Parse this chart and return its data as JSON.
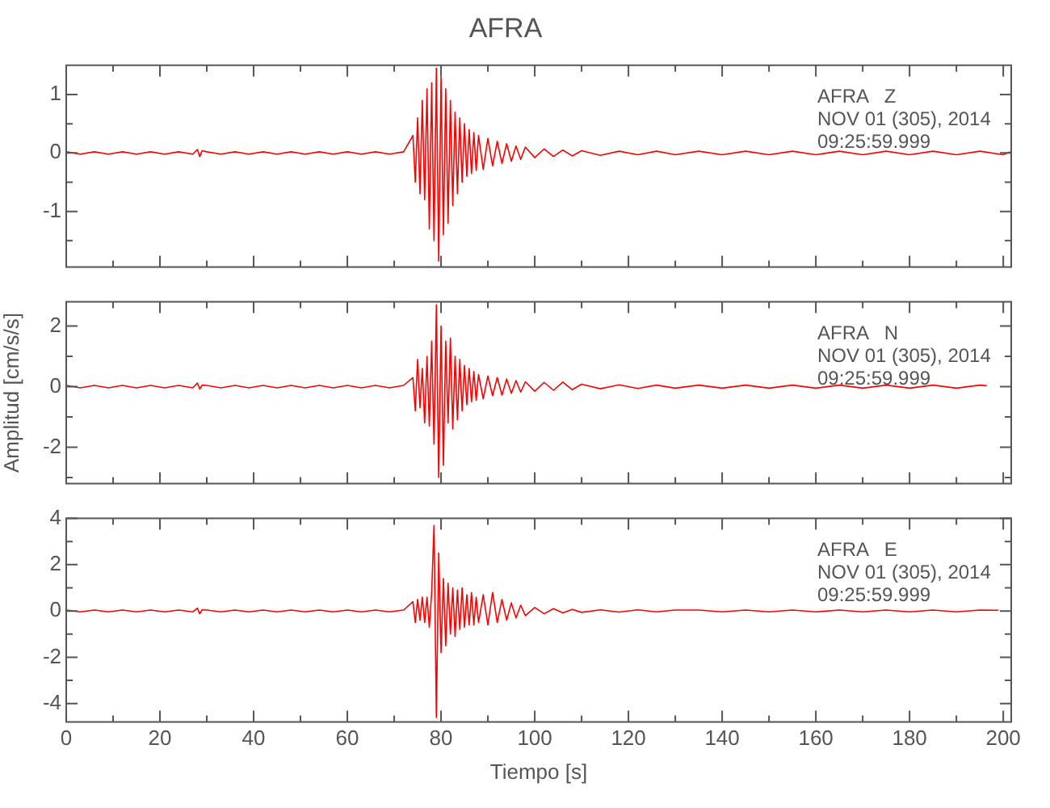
{
  "chart_data": [
    {
      "type": "line",
      "title": "AFRA",
      "annotations": [
        "AFRA   Z",
        "NOV 01 (305), 2014",
        "09:25:59.999"
      ],
      "x": [
        0,
        3,
        6,
        9,
        12,
        15,
        18,
        21,
        24,
        27,
        28,
        28.5,
        29,
        30,
        33,
        36,
        39,
        42,
        45,
        48,
        51,
        54,
        57,
        60,
        63,
        66,
        69,
        72,
        74,
        74.5,
        75,
        75.5,
        76,
        76.5,
        77,
        77.5,
        78,
        78.5,
        79,
        79.5,
        80,
        80.5,
        81,
        81.5,
        82,
        82.5,
        83,
        83.5,
        84,
        84.5,
        85,
        85.5,
        86,
        86.5,
        87,
        87.5,
        88,
        89,
        90,
        91,
        92,
        93,
        94,
        95,
        96,
        97,
        98,
        100,
        102,
        104,
        106,
        108,
        110,
        114,
        118,
        122,
        126,
        130,
        135,
        140,
        145,
        150,
        155,
        160,
        165,
        170,
        175,
        180,
        185,
        190,
        195,
        200,
        201.5
      ],
      "series": [
        {
          "color": "#ff0000",
          "values": [
            0.02,
            -0.02,
            0.02,
            -0.02,
            0.02,
            -0.02,
            0.02,
            -0.02,
            0.02,
            -0.02,
            0.06,
            -0.06,
            0.04,
            0.02,
            -0.02,
            0.02,
            -0.02,
            0.02,
            -0.02,
            0.02,
            -0.02,
            0.02,
            -0.02,
            0.02,
            -0.02,
            0.02,
            -0.02,
            0.02,
            0.3,
            -0.5,
            0.6,
            -0.7,
            0.9,
            -0.8,
            1.1,
            -1.3,
            1.2,
            -1.5,
            1.45,
            -1.85,
            1.3,
            -1.4,
            1.1,
            -1.2,
            0.9,
            -0.9,
            0.7,
            -0.7,
            0.6,
            -0.5,
            0.5,
            -0.4,
            0.4,
            -0.35,
            0.35,
            -0.3,
            0.3,
            -0.28,
            0.25,
            -0.22,
            0.2,
            -0.18,
            0.16,
            -0.14,
            0.12,
            -0.11,
            0.1,
            -0.08,
            0.07,
            -0.06,
            0.05,
            -0.05,
            0.04,
            -0.04,
            0.03,
            -0.03,
            0.03,
            -0.03,
            0.03,
            -0.03,
            0.03,
            -0.03,
            0.03,
            -0.03,
            0.03,
            -0.03,
            0.03,
            -0.03,
            0.03,
            -0.03,
            0.03,
            -0.03,
            0.02
          ]
        }
      ],
      "xlim": [
        0,
        201.7
      ],
      "xticks": [
        0,
        {
          "value": 10,
          "label": null
        },
        20,
        {
          "value": 30,
          "label": null
        },
        40,
        {
          "value": 50,
          "label": null
        },
        60,
        {
          "value": 70,
          "label": null
        },
        80,
        {
          "value": 90,
          "label": null
        },
        100,
        {
          "value": 110,
          "label": null
        },
        120,
        {
          "value": 130,
          "label": null
        },
        140,
        {
          "value": 150,
          "label": null
        },
        160,
        {
          "value": 170,
          "label": null
        },
        180,
        {
          "value": 190,
          "label": null
        },
        200
      ],
      "ylim": [
        -1.95,
        1.5
      ],
      "yticks": [
        {
          "value": -1.5,
          "label": null
        },
        -1,
        {
          "value": -0.5,
          "label": null
        },
        0,
        {
          "value": 0.5,
          "label": null
        },
        1
      ],
      "tick_labels": "y"
    },
    {
      "type": "line",
      "ylabel": "Amplitud [cm/s/s]",
      "annotations": [
        "AFRA   N",
        "NOV 01 (305), 2014",
        "09:25:59.999"
      ],
      "x": [
        0,
        3,
        6,
        9,
        12,
        15,
        18,
        21,
        24,
        27,
        28,
        28.5,
        29,
        30,
        33,
        36,
        39,
        42,
        45,
        48,
        51,
        54,
        57,
        60,
        63,
        66,
        69,
        72,
        74,
        74.5,
        75,
        75.5,
        76,
        76.5,
        77,
        77.5,
        78,
        78.5,
        79,
        79.5,
        80,
        80.5,
        81,
        81.5,
        82,
        82.5,
        83,
        83.5,
        84,
        84.5,
        85,
        85.5,
        86,
        86.5,
        87,
        87.5,
        88,
        89,
        90,
        91,
        92,
        93,
        94,
        95,
        96,
        97,
        98,
        100,
        102,
        104,
        106,
        108,
        110,
        114,
        118,
        122,
        126,
        130,
        135,
        140,
        145,
        150,
        155,
        160,
        165,
        170,
        175,
        180,
        185,
        190,
        195,
        196.5
      ],
      "series": [
        {
          "color": "#ff0000",
          "values": [
            0.04,
            -0.04,
            0.04,
            -0.04,
            0.04,
            -0.04,
            0.04,
            -0.04,
            0.04,
            -0.04,
            0.12,
            -0.08,
            0.05,
            0.04,
            -0.04,
            0.04,
            -0.04,
            0.04,
            -0.04,
            0.04,
            -0.04,
            0.04,
            -0.04,
            0.04,
            -0.04,
            0.04,
            -0.04,
            0.04,
            0.3,
            -0.8,
            0.9,
            -0.7,
            0.6,
            -1.2,
            1.0,
            -1.3,
            1.5,
            -1.9,
            2.7,
            -3.0,
            2.0,
            -2.6,
            1.5,
            -1.2,
            1.6,
            -1.4,
            1.0,
            -1.1,
            0.9,
            -0.8,
            0.7,
            -0.6,
            0.6,
            -0.5,
            0.5,
            -0.45,
            0.4,
            -0.4,
            0.35,
            -0.3,
            0.3,
            -0.28,
            0.25,
            -0.22,
            0.2,
            -0.18,
            0.16,
            -0.15,
            0.14,
            -0.12,
            0.15,
            -0.1,
            0.08,
            -0.07,
            0.06,
            -0.06,
            0.05,
            -0.05,
            0.05,
            -0.05,
            0.05,
            -0.05,
            0.05,
            -0.05,
            0.05,
            -0.05,
            0.05,
            -0.05,
            0.05,
            -0.05,
            0.05,
            0.03
          ]
        }
      ],
      "xlim": [
        0,
        201.7
      ],
      "xticks": [
        0,
        {
          "value": 10,
          "label": null
        },
        20,
        {
          "value": 30,
          "label": null
        },
        40,
        {
          "value": 50,
          "label": null
        },
        60,
        {
          "value": 70,
          "label": null
        },
        80,
        {
          "value": 90,
          "label": null
        },
        100,
        {
          "value": 110,
          "label": null
        },
        120,
        {
          "value": 130,
          "label": null
        },
        140,
        {
          "value": 150,
          "label": null
        },
        160,
        {
          "value": 170,
          "label": null
        },
        180,
        {
          "value": 190,
          "label": null
        },
        200
      ],
      "ylim": [
        -3.2,
        2.8
      ],
      "yticks": [
        {
          "value": -3,
          "label": null
        },
        -2,
        {
          "value": -1,
          "label": null
        },
        0,
        {
          "value": 1,
          "label": null
        },
        2
      ],
      "tick_labels": "y"
    },
    {
      "type": "line",
      "xlabel": "Tiempo [s]",
      "annotations": [
        "AFRA   E",
        "NOV 01 (305), 2014",
        "09:25:59.999"
      ],
      "x": [
        0,
        3,
        6,
        9,
        12,
        15,
        18,
        21,
        24,
        27,
        28,
        28.5,
        29,
        30,
        33,
        36,
        39,
        42,
        45,
        48,
        51,
        54,
        57,
        60,
        63,
        66,
        69,
        72,
        74,
        74.5,
        75,
        75.5,
        76,
        76.5,
        77,
        77.5,
        78,
        78.5,
        79,
        79.5,
        80,
        80.5,
        81,
        81.5,
        82,
        82.5,
        83,
        83.5,
        84,
        84.5,
        85,
        85.5,
        86,
        86.5,
        87,
        87.5,
        88,
        89,
        90,
        91,
        92,
        93,
        94,
        95,
        96,
        97,
        98,
        100,
        102,
        104,
        106,
        108,
        110,
        114,
        118,
        122,
        126,
        130,
        135,
        140,
        145,
        150,
        155,
        160,
        165,
        170,
        175,
        180,
        185,
        190,
        195,
        199
      ],
      "series": [
        {
          "color": "#ff0000",
          "values": [
            0.04,
            -0.04,
            0.04,
            -0.04,
            0.04,
            -0.04,
            0.04,
            -0.04,
            0.04,
            -0.04,
            0.12,
            -0.12,
            0.05,
            0.04,
            -0.04,
            0.04,
            -0.04,
            0.04,
            -0.04,
            0.04,
            -0.04,
            0.04,
            -0.04,
            0.04,
            -0.04,
            0.04,
            -0.04,
            0.04,
            0.4,
            -0.5,
            0.5,
            -0.4,
            0.6,
            -0.5,
            0.6,
            -0.7,
            0.8,
            3.7,
            -4.6,
            2.5,
            -1.8,
            1.4,
            -1.5,
            1.2,
            -1.0,
            1.0,
            -1.1,
            0.9,
            -0.8,
            1.0,
            -0.7,
            0.7,
            -0.6,
            0.8,
            -0.6,
            0.6,
            -0.5,
            0.7,
            -0.6,
            0.8,
            -0.5,
            0.5,
            -0.4,
            0.35,
            -0.3,
            0.25,
            -0.2,
            0.15,
            -0.12,
            0.1,
            -0.08,
            0.07,
            -0.06,
            0.05,
            -0.05,
            0.05,
            -0.04,
            0.04,
            0.04,
            -0.04,
            0.04,
            -0.04,
            0.04,
            -0.04,
            0.04,
            -0.04,
            0.04,
            -0.04,
            0.04,
            -0.04,
            0.04,
            0.03
          ]
        }
      ],
      "xlim": [
        0,
        201.7
      ],
      "xticks": [
        0,
        {
          "value": 10,
          "label": null
        },
        20,
        {
          "value": 30,
          "label": null
        },
        40,
        {
          "value": 50,
          "label": null
        },
        60,
        {
          "value": 70,
          "label": null
        },
        80,
        {
          "value": 90,
          "label": null
        },
        100,
        {
          "value": 110,
          "label": null
        },
        120,
        {
          "value": 130,
          "label": null
        },
        140,
        {
          "value": 150,
          "label": null
        },
        160,
        {
          "value": 170,
          "label": null
        },
        180,
        {
          "value": 190,
          "label": null
        },
        200
      ],
      "ylim": [
        -4.8,
        4
      ],
      "yticks": [
        -4,
        {
          "value": -3,
          "label": null
        },
        -2,
        {
          "value": -1,
          "label": null
        },
        0,
        {
          "value": 1,
          "label": null
        },
        2,
        {
          "value": 3,
          "label": null
        },
        4
      ]
    }
  ]
}
